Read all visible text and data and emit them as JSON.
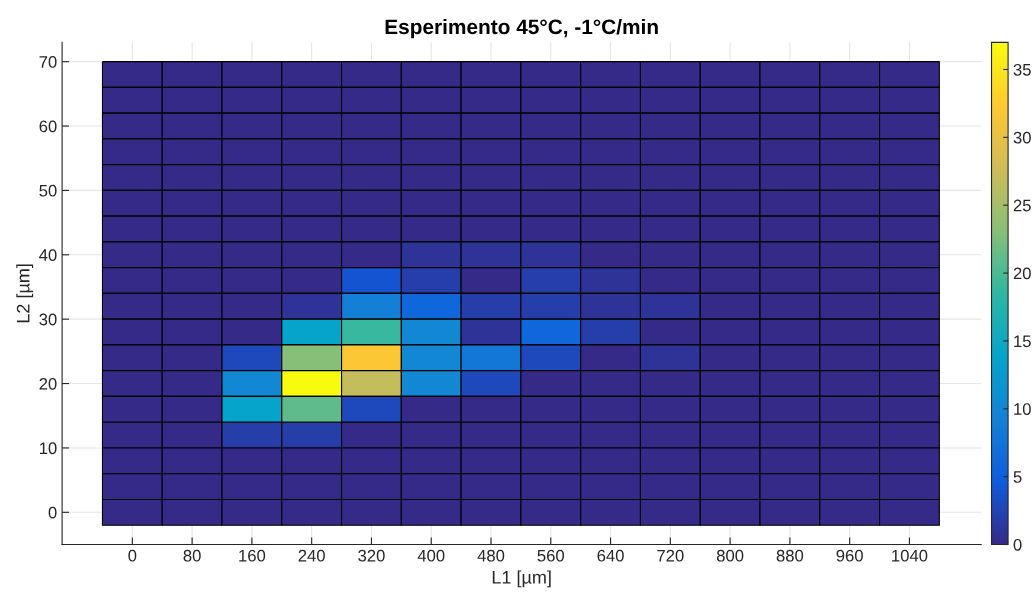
{
  "chart_data": {
    "type": "heatmap",
    "title": "Esperimento 45°C, -1°C/min",
    "xlabel": "L1 [µm]",
    "ylabel": "L2 [µm]",
    "x": [
      0,
      80,
      160,
      240,
      320,
      400,
      480,
      560,
      640,
      720,
      800,
      880,
      960,
      1040
    ],
    "y": [
      68,
      64,
      60,
      56,
      52,
      48,
      44,
      40,
      36,
      32,
      28,
      24,
      20,
      16,
      12,
      8,
      4,
      0
    ],
    "cells": [
      [
        0,
        0,
        0,
        0,
        0,
        0,
        0,
        0,
        0,
        0,
        0,
        0,
        0,
        0
      ],
      [
        0,
        0,
        0,
        0,
        0,
        0,
        0,
        0,
        0,
        0,
        0,
        0,
        0,
        0
      ],
      [
        0,
        0,
        0,
        0,
        0,
        0,
        0,
        0,
        0,
        0,
        0,
        0,
        0,
        0
      ],
      [
        0,
        0,
        0,
        0,
        0,
        0,
        0,
        0,
        0,
        0,
        0,
        0,
        0,
        0
      ],
      [
        0,
        0,
        0,
        0,
        0,
        0,
        0,
        0,
        0,
        0,
        0,
        0,
        0,
        0
      ],
      [
        0,
        0,
        0,
        0,
        0,
        0,
        0,
        0,
        0,
        0,
        0,
        0,
        0,
        0
      ],
      [
        0,
        0,
        0,
        0,
        0,
        0,
        0,
        0,
        0,
        0,
        0,
        0,
        0,
        0
      ],
      [
        0,
        0,
        0,
        0,
        0,
        1,
        1,
        1,
        0,
        0,
        0,
        0,
        0,
        0
      ],
      [
        0,
        0,
        0,
        0,
        4,
        2,
        0,
        2,
        1,
        0,
        0,
        0,
        0,
        0
      ],
      [
        0,
        0,
        0,
        1,
        9,
        6,
        2,
        2,
        1,
        1,
        0,
        0,
        0,
        0
      ],
      [
        0,
        0,
        0,
        14,
        19,
        10,
        1,
        6,
        2,
        0,
        0,
        0,
        0,
        0
      ],
      [
        0,
        0,
        3,
        23,
        32,
        10,
        8,
        3,
        0,
        1,
        0,
        0,
        0,
        0
      ],
      [
        0,
        0,
        10,
        37,
        27,
        10,
        3,
        0,
        0,
        0,
        0,
        0,
        0,
        0
      ],
      [
        0,
        0,
        14,
        21,
        3,
        0,
        0,
        0,
        0,
        0,
        0,
        0,
        0,
        0
      ],
      [
        0,
        0,
        2,
        2,
        0,
        0,
        0,
        0,
        0,
        0,
        0,
        0,
        0,
        0
      ],
      [
        0,
        0,
        0,
        0,
        0,
        0,
        0,
        0,
        0,
        0,
        0,
        0,
        0,
        0
      ],
      [
        0,
        0,
        0,
        0,
        0,
        0,
        0,
        0,
        0,
        0,
        0,
        0,
        0,
        0
      ],
      [
        0,
        0,
        0,
        0,
        0,
        0,
        0,
        0,
        0,
        0,
        0,
        0,
        0,
        0
      ]
    ],
    "xlim": [
      -94,
      1136
    ],
    "ylim": [
      -5,
      73
    ],
    "xticks": [
      0,
      80,
      160,
      240,
      320,
      400,
      480,
      560,
      640,
      720,
      800,
      880,
      960,
      1040
    ],
    "yticks": [
      0,
      10,
      20,
      30,
      40,
      50,
      60,
      70
    ],
    "clim": [
      0,
      37
    ],
    "cticks": [
      0,
      5,
      10,
      15,
      20,
      25,
      30,
      35
    ],
    "grid": true
  }
}
